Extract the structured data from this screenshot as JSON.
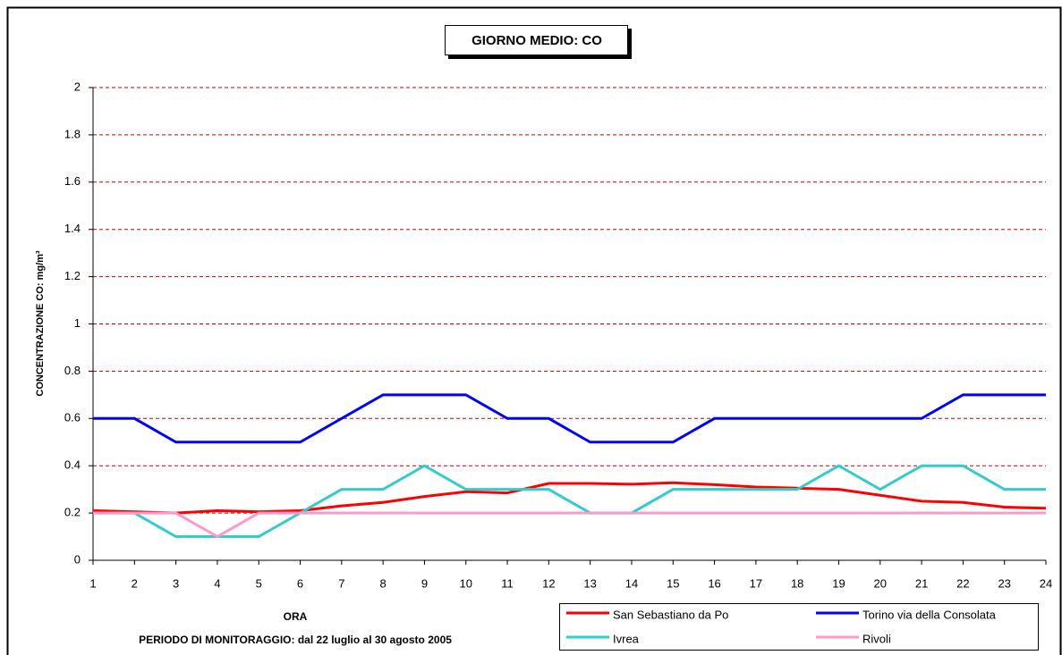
{
  "chart_data": {
    "type": "line",
    "title": "GIORNO MEDIO: CO",
    "y_label": "CONCENTRAZIONE CO: mg/m³",
    "x_label": "ORA",
    "note": "PERIODO DI MONITORAGGIO: dal 22 luglio al 30 agosto 2005",
    "x": [
      1,
      2,
      3,
      4,
      5,
      6,
      7,
      8,
      9,
      10,
      11,
      12,
      13,
      14,
      15,
      16,
      17,
      18,
      19,
      20,
      21,
      22,
      23,
      24
    ],
    "xlim": [
      1,
      24
    ],
    "xticks": [
      1,
      2,
      3,
      4,
      5,
      6,
      7,
      8,
      9,
      10,
      11,
      12,
      13,
      14,
      15,
      16,
      17,
      18,
      19,
      20,
      21,
      22,
      23,
      24
    ],
    "ylim": [
      0,
      2
    ],
    "yticks": [
      0,
      0.2,
      0.4,
      0.6,
      0.8,
      1,
      1.2,
      1.4,
      1.6,
      1.8,
      2
    ],
    "grid": true,
    "grid_color": "#cc0000",
    "legend": "bottom-right",
    "series": [
      {
        "name": "San Sebastiano da Po",
        "color": "#ff0000",
        "values": [
          0.21,
          0.205,
          0.2,
          0.21,
          0.205,
          0.21,
          0.23,
          0.245,
          0.27,
          0.29,
          0.285,
          0.325,
          0.325,
          0.322,
          0.328,
          0.32,
          0.31,
          0.305,
          0.3,
          0.275,
          0.25,
          0.245,
          0.225,
          0.22
        ]
      },
      {
        "name": "Torino via della Consolata",
        "color": "#0000ff",
        "values": [
          0.6,
          0.6,
          0.5,
          0.5,
          0.5,
          0.5,
          0.6,
          0.7,
          0.7,
          0.7,
          0.6,
          0.6,
          0.5,
          0.5,
          0.5,
          0.6,
          0.6,
          0.6,
          0.6,
          0.6,
          0.6,
          0.7,
          0.7,
          0.7
        ]
      },
      {
        "name": "Ivrea",
        "color": "#33cccc",
        "values": [
          0.2,
          0.2,
          0.1,
          0.1,
          0.1,
          0.2,
          0.3,
          0.3,
          0.4,
          0.3,
          0.3,
          0.3,
          0.2,
          0.2,
          0.3,
          0.3,
          0.3,
          0.3,
          0.4,
          0.3,
          0.4,
          0.4,
          0.3,
          0.3
        ]
      },
      {
        "name": "Rivoli",
        "color": "#ff99cc",
        "values": [
          0.2,
          0.2,
          0.2,
          0.1,
          0.2,
          0.2,
          0.2,
          0.2,
          0.2,
          0.2,
          0.2,
          0.2,
          0.2,
          0.2,
          0.2,
          0.2,
          0.2,
          0.2,
          0.2,
          0.2,
          0.2,
          0.2,
          0.2,
          0.2
        ]
      }
    ]
  }
}
